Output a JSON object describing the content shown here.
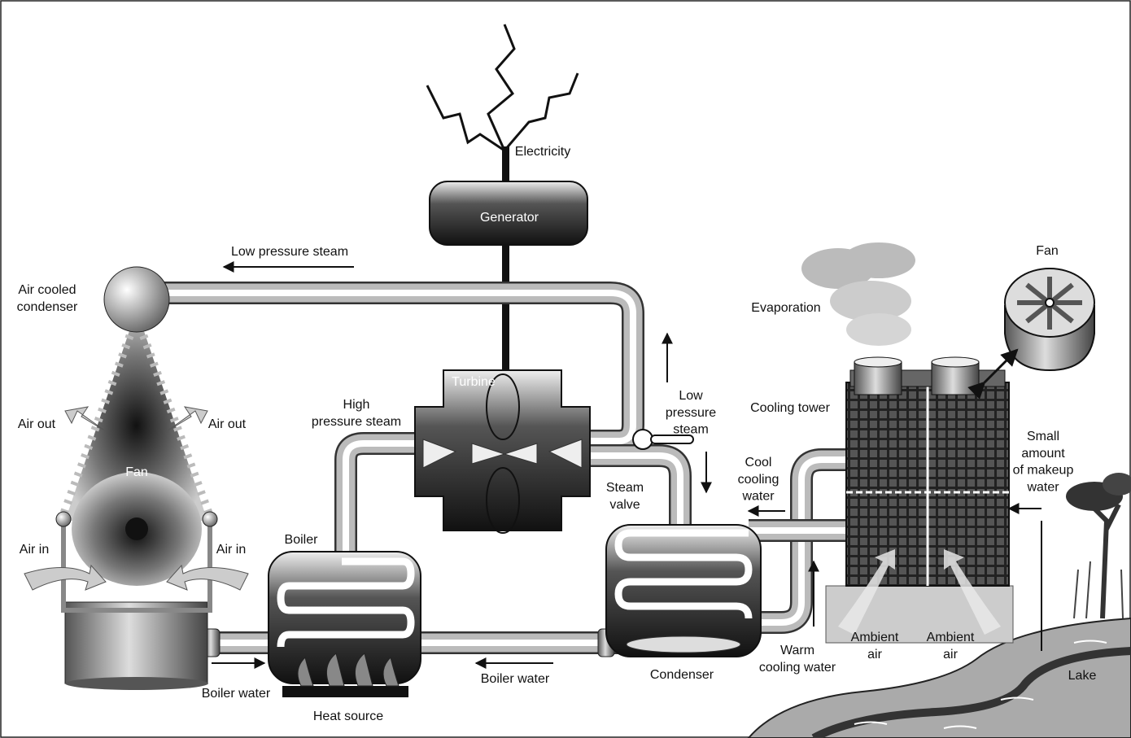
{
  "labels": {
    "electricity": "Electricity",
    "generator": "Generator",
    "low_pressure_steam_top": "Low pressure steam",
    "air_cooled_condenser": [
      "Air cooled",
      "condenser"
    ],
    "turbine": "Turbine",
    "high_pressure_steam": [
      "High",
      "pressure steam"
    ],
    "low_pressure_steam_right": [
      "Low",
      "pressure",
      "steam"
    ],
    "evaporation": "Evaporation",
    "fan_right": "Fan",
    "cooling_tower": "Cooling tower",
    "air_out_left": "Air out",
    "air_out_right": "Air out",
    "fan_left": "Fan",
    "makeup_water": [
      "Small",
      "amount",
      "of makeup",
      "water"
    ],
    "cool_cooling_water": [
      "Cool",
      "cooling",
      "water"
    ],
    "steam_valve": [
      "Steam",
      "valve"
    ],
    "boiler": "Boiler",
    "air_in_left": "Air in",
    "air_in_right": "Air in",
    "ambient_air_left": [
      "Ambient",
      "air"
    ],
    "ambient_air_right": [
      "Ambient",
      "air"
    ],
    "warm_cooling_water": [
      "Warm",
      "cooling water"
    ],
    "lake": "Lake",
    "boiler_water_middle": "Boiler water",
    "condenser": "Condenser",
    "boiler_water_left": "Boiler water",
    "heat_source": "Heat source"
  }
}
